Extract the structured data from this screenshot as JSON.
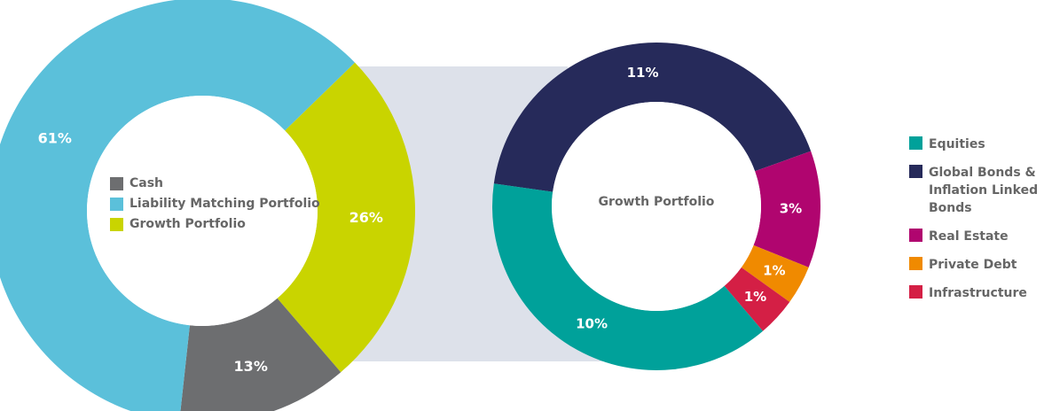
{
  "chart_data": [
    {
      "type": "donut",
      "categories": [
        "Cash",
        "Liability Matching Portfolio",
        "Growth Portfolio"
      ],
      "values": [
        13,
        61,
        26
      ],
      "value_labels": [
        "13%",
        "61%",
        "26%"
      ],
      "colors": [
        "#6d6e70",
        "#5bc0da",
        "#c9d400"
      ]
    },
    {
      "type": "donut",
      "title": "Growth Portfolio",
      "categories": [
        "Equities",
        "Global Bonds & Inflation Linked Bonds",
        "Real Estate",
        "Private Debt",
        "Infrastructure"
      ],
      "values": [
        10,
        11,
        3,
        1,
        1
      ],
      "value_labels": [
        "10%",
        "11%",
        "3%",
        "1%",
        "1%"
      ],
      "colors": [
        "#00a19a",
        "#262a5a",
        "#b0056f",
        "#f08a00",
        "#d41f45"
      ]
    }
  ]
}
